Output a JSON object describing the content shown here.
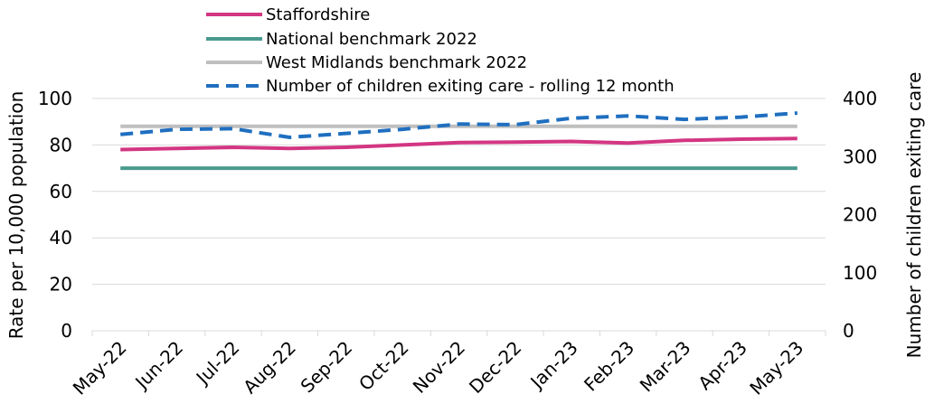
{
  "chart_data": {
    "type": "line",
    "categories": [
      "May-22",
      "Jun-22",
      "Jul-22",
      "Aug-22",
      "Sep-22",
      "Oct-22",
      "Nov-22",
      "Dec-22",
      "Jan-23",
      "Feb-23",
      "Mar-23",
      "Apr-23",
      "May-23"
    ],
    "ylabel": "Rate per 10,000 population",
    "y2label": "Number of children exiting care",
    "ylim": [
      0,
      100
    ],
    "y2lim": [
      0,
      400
    ],
    "yticks": [
      "0",
      "20",
      "40",
      "60",
      "80",
      "100"
    ],
    "y2ticks": [
      "0",
      "100",
      "200",
      "300",
      "400"
    ],
    "grid": true,
    "legend_position": "top",
    "series": [
      {
        "name": "Staffordshire",
        "axis": "left",
        "style": "solid",
        "color": "#D33682",
        "values": [
          78,
          78.5,
          79,
          78.5,
          79,
          80,
          81,
          81.2,
          81.5,
          80.8,
          82,
          82.5,
          82.8
        ]
      },
      {
        "name": "National benchmark 2022",
        "axis": "left",
        "style": "solid",
        "color": "#4A9A8E",
        "values": [
          70,
          70,
          70,
          70,
          70,
          70,
          70,
          70,
          70,
          70,
          70,
          70,
          70
        ]
      },
      {
        "name": "West Midlands benchmark 2022",
        "axis": "left",
        "style": "solid",
        "color": "#BFBFBF",
        "values": [
          88,
          88,
          88,
          88,
          88,
          88,
          88,
          88,
          88,
          88,
          88,
          88,
          88
        ]
      },
      {
        "name": "Number of children exiting care - rolling 12 month",
        "axis": "right",
        "style": "dashed",
        "color": "#1F6FC0",
        "values": [
          338,
          347,
          348,
          333,
          340,
          347,
          356,
          355,
          366,
          370,
          364,
          368,
          375
        ]
      }
    ]
  }
}
